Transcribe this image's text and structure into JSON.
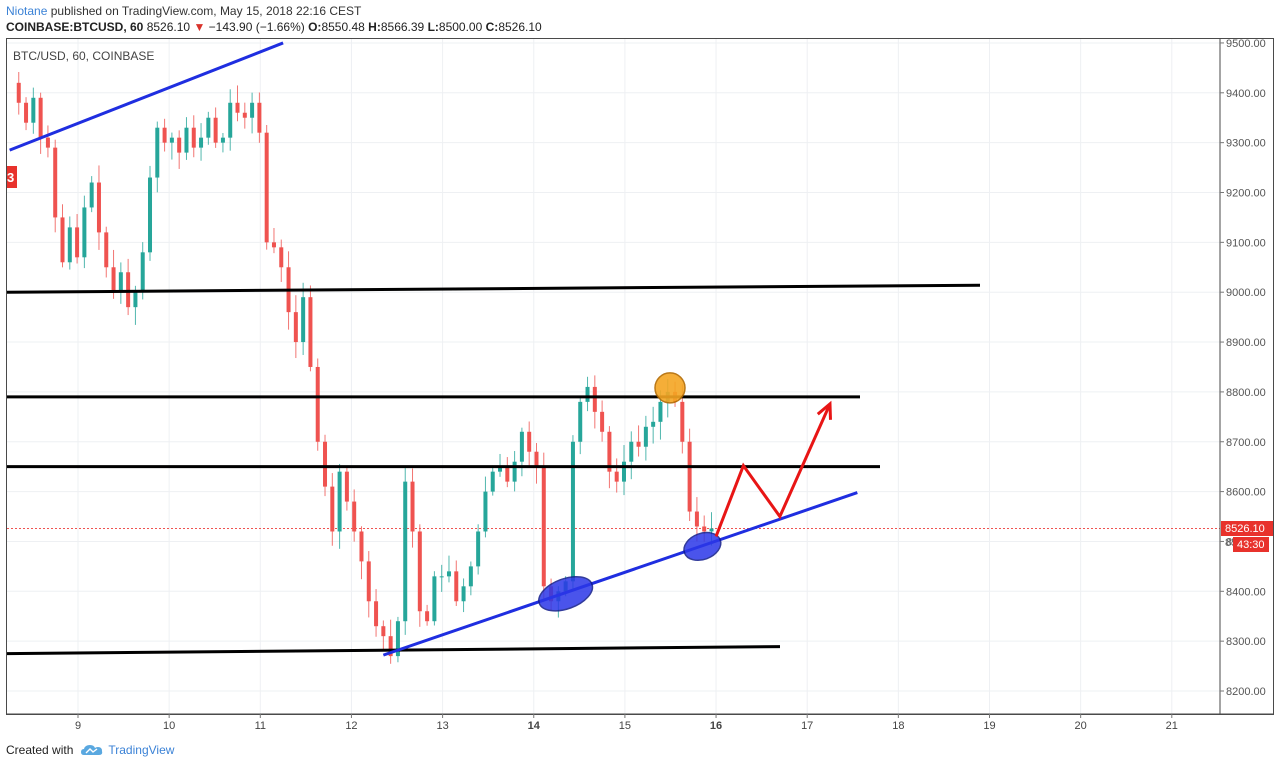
{
  "header": {
    "author": "Niotane",
    "published_text": "published on TradingView.com, May 15, 2018 22:16 CEST"
  },
  "quote": {
    "symbol_timeframe": "COINBASE:BTCUSD, 60",
    "last": "8526.10",
    "change_arrow": "▼",
    "change": "−143.90 (−1.66%)",
    "open_label": "O:",
    "open": "8550.48",
    "high_label": "H:",
    "high": "8566.39",
    "low_label": "L:",
    "low": "8500.00",
    "close_label": "C:",
    "close": "8526.10"
  },
  "chart": {
    "legend": "BTC/USD, 60, COINBASE",
    "edge_badge": "3",
    "price_badge": "8526.10",
    "countdown_badge": "43:30",
    "price_badge_partial": "85"
  },
  "footer": {
    "created_with": "Created with",
    "brand": "TradingView",
    "logo_icon": "cloud-logo-icon"
  },
  "colors": {
    "up": "#26a69a",
    "down": "#ef5350",
    "trendline": "#1f2ee0",
    "level_line": "#000000",
    "arrow": "#e81515",
    "marker_top": "#f5a623",
    "marker_support": "#2b37e8",
    "badge": "#e8322c"
  },
  "chart_data": {
    "type": "candlestick",
    "instrument": "BTC/USD, 60, COINBASE",
    "y_axis": {
      "range": [
        8150,
        9510
      ],
      "tick_labels": [
        "9500.00",
        "9400.00",
        "9300.00",
        "9200.00",
        "9100.00",
        "9000.00",
        "8900.00",
        "8800.00",
        "8700.00",
        "8600.00",
        "8500.00",
        "8400.00",
        "8300.00",
        "8200.00"
      ]
    },
    "x_axis": {
      "tick_labels": [
        "9",
        "10",
        "11",
        "12",
        "13",
        "14",
        "15",
        "16",
        "17",
        "18",
        "19",
        "20",
        "21"
      ],
      "bold_labels": [
        "14",
        "16"
      ]
    },
    "last_price": 8526.1,
    "approx_closes": [
      9420,
      9380,
      9340,
      9390,
      9310,
      9290,
      9150,
      9060,
      9130,
      9070,
      9170,
      9220,
      9120,
      9050,
      9000,
      9040,
      8970,
      9000,
      9080,
      9230,
      9330,
      9300,
      9310,
      9280,
      9330,
      9290,
      9310,
      9350,
      9300,
      9310,
      9380,
      9360,
      9350,
      9380,
      9320,
      9100,
      9090,
      9050,
      8960,
      8900,
      8990,
      8850,
      8700,
      8610,
      8520,
      8640,
      8580,
      8520,
      8460,
      8380,
      8330,
      8310,
      8270,
      8340,
      8620,
      8520,
      8360,
      8340,
      8430,
      8430,
      8440,
      8380,
      8410,
      8450,
      8520,
      8600,
      8640,
      8650,
      8620,
      8660,
      8720,
      8680,
      8650,
      8410,
      8380,
      8400,
      8420,
      8700,
      8780,
      8810,
      8760,
      8720,
      8640,
      8620,
      8660,
      8700,
      8690,
      8730,
      8740,
      8780,
      8800,
      8780,
      8700,
      8560,
      8530,
      8520,
      8526
    ],
    "drawings": {
      "horizontal_levels": [
        9000,
        8790,
        8650,
        8275
      ],
      "support_trendline": [
        [
          12.35,
          8272
        ],
        [
          17.55,
          8598
        ]
      ],
      "upper_trendline": [
        [
          8.25,
          9285
        ],
        [
          11.25,
          9500
        ]
      ],
      "projection_path": [
        [
          16.0,
          8510
        ],
        [
          16.3,
          8652
        ],
        [
          16.7,
          8550
        ],
        [
          17.25,
          8776
        ]
      ],
      "top_marker_price": 8808,
      "support_markers": [
        [
          14.35,
          8395
        ],
        [
          15.85,
          8490
        ]
      ]
    }
  }
}
